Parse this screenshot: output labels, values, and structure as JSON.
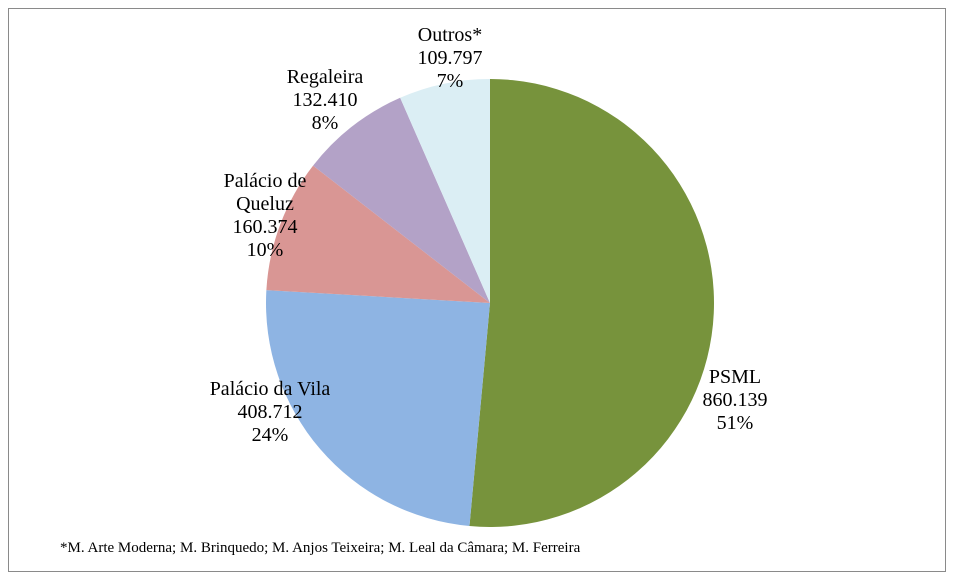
{
  "chart_data": {
    "type": "pie",
    "categories": [
      "PSML",
      "Palácio da Vila",
      "Palácio de Queluz",
      "Regaleira",
      "Outros*"
    ],
    "values": [
      860139,
      408712,
      160374,
      132410,
      109797
    ],
    "value_labels": [
      "860.139",
      "408.712",
      "160.374",
      "132.410",
      "109.797"
    ],
    "percent_labels": [
      "51%",
      "24%",
      "10%",
      "8%",
      "7%"
    ],
    "colors": [
      "#77933c",
      "#8eb4e3",
      "#d99694",
      "#b3a2c7",
      "#dbeef4"
    ],
    "footnote": "*M. Arte Moderna; M. Brinquedo; M. Anjos Teixeira; M. Leal da Câmara; M. Ferreira"
  }
}
